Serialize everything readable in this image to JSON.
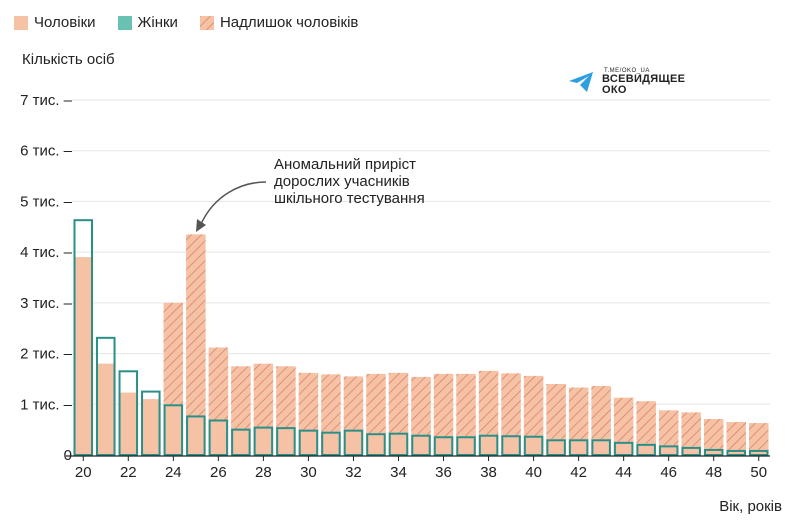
{
  "legend": [
    {
      "label": "Чоловіки",
      "color": "#f5c2a5"
    },
    {
      "label": "Жінки",
      "color": "#69c1b2"
    },
    {
      "label": "Надлишок чоловіків",
      "color": "#e0876a"
    }
  ],
  "watermark": {
    "url": "T.ME/OKO_UA",
    "name_line1": "ВСЕВИДЯЩЕЕ",
    "name_line2": "ОКО",
    "icon": "paper-plane-icon"
  },
  "annotation": {
    "lines": [
      "Аномальний приріст",
      "дорослих учасників",
      "шкільного тестування"
    ]
  },
  "chart_data": {
    "type": "bar",
    "title": "",
    "ylabel": "Кількість осіб",
    "xlabel": "Вік, років",
    "ylim": [
      0,
      7000
    ],
    "yticks": [
      {
        "value": 0,
        "label": "0"
      },
      {
        "value": 1000,
        "label": "1 тис."
      },
      {
        "value": 2000,
        "label": "2 тис."
      },
      {
        "value": 3000,
        "label": "3 тис."
      },
      {
        "value": 4000,
        "label": "4 тис."
      },
      {
        "value": 5000,
        "label": "5 тис."
      },
      {
        "value": 6000,
        "label": "6 тис."
      },
      {
        "value": 7000,
        "label": "7 тис."
      }
    ],
    "x": [
      20,
      21,
      22,
      23,
      24,
      25,
      26,
      27,
      28,
      29,
      30,
      31,
      32,
      33,
      34,
      35,
      36,
      37,
      38,
      39,
      40,
      41,
      42,
      43,
      44,
      45,
      46,
      47,
      48,
      49,
      50
    ],
    "xticks": [
      20,
      22,
      24,
      26,
      28,
      30,
      32,
      34,
      36,
      38,
      40,
      42,
      44,
      46,
      48,
      50
    ],
    "series": [
      {
        "name": "Чоловіки",
        "values": [
          3900,
          1800,
          1230,
          1100,
          3000,
          4350,
          2120,
          1750,
          1800,
          1750,
          1620,
          1590,
          1550,
          1600,
          1620,
          1540,
          1600,
          1600,
          1660,
          1610,
          1560,
          1400,
          1330,
          1360,
          1130,
          1060,
          880,
          840,
          710,
          650,
          630
        ]
      },
      {
        "name": "Жінки",
        "values": [
          4650,
          2330,
          1670,
          1270,
          1000,
          780,
          700,
          520,
          560,
          550,
          500,
          460,
          500,
          430,
          440,
          400,
          370,
          370,
          400,
          390,
          380,
          310,
          310,
          310,
          260,
          220,
          190,
          160,
          120,
          100,
          100
        ]
      }
    ],
    "colors": {
      "men_fill": "#f5c2a5",
      "women_outline": "#2a8f86",
      "hatch": "#d97a5e",
      "grid": "#e5e5e5"
    },
    "grid": true,
    "legend_position": "top-left"
  }
}
